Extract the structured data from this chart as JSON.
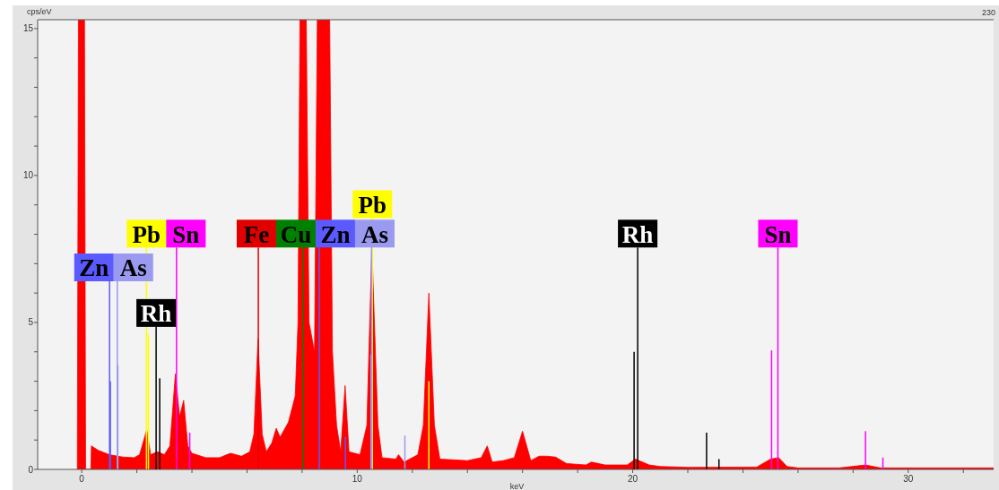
{
  "chart_data": {
    "type": "area",
    "xlabel": "keV",
    "ylabel": "cps/eV",
    "annotations": [
      "230"
    ],
    "xlim": [
      -1.6,
      33.1
    ],
    "ylim": [
      0,
      15.3
    ],
    "xticks": [
      0,
      {
        "value": 2,
        "label": null
      },
      {
        "value": 4,
        "label": null
      },
      {
        "value": 6,
        "label": null
      },
      {
        "value": 8,
        "label": null
      },
      10,
      {
        "value": 12,
        "label": null
      },
      {
        "value": 14,
        "label": null
      },
      {
        "value": 16,
        "label": null
      },
      {
        "value": 18,
        "label": null
      },
      20,
      {
        "value": 22,
        "label": null
      },
      {
        "value": 24,
        "label": null
      },
      {
        "value": 26,
        "label": null
      },
      {
        "value": 28,
        "label": null
      },
      30,
      {
        "value": 32,
        "label": null
      }
    ],
    "yticks": [
      0,
      {
        "value": 1,
        "label": null
      },
      {
        "value": 2,
        "label": null
      },
      {
        "value": 3,
        "label": null
      },
      {
        "value": 4,
        "label": null
      },
      5,
      {
        "value": 6,
        "label": null
      },
      {
        "value": 7,
        "label": null
      },
      {
        "value": 8,
        "label": null
      },
      {
        "value": 9,
        "label": null
      },
      10,
      {
        "value": 11,
        "label": null
      },
      {
        "value": 12,
        "label": null
      },
      {
        "value": 13,
        "label": null
      },
      {
        "value": 14,
        "label": null
      },
      15
    ],
    "series": [
      {
        "color": "#ff0000",
        "x": [
          -0.16,
          -0.12,
          0.1,
          0.14,
          0.33,
          0.35,
          0.6,
          1.0,
          1.5,
          1.9,
          2.1,
          2.36,
          2.5,
          2.75,
          3.0,
          3.2,
          3.4,
          3.55,
          3.7,
          3.85,
          4.0,
          4.5,
          5.0,
          5.4,
          5.8,
          6.1,
          6.25,
          6.4,
          6.55,
          6.7,
          6.9,
          7.06,
          7.2,
          7.5,
          7.75,
          7.85,
          7.92,
          8.15,
          8.25,
          8.45,
          8.55,
          9.0,
          9.1,
          9.25,
          9.4,
          9.56,
          9.7,
          10.1,
          10.35,
          10.53,
          10.75,
          10.9,
          11.4,
          11.5,
          11.7,
          12.2,
          12.4,
          12.6,
          12.8,
          13.0,
          14.0,
          14.5,
          14.72,
          14.9,
          15.3,
          15.7,
          16.0,
          16.3,
          16.6,
          16.9,
          17.2,
          17.6,
          18.3,
          18.5,
          19.0,
          19.8,
          20.1,
          20.6,
          21.0,
          22.0,
          24.5,
          25.0,
          25.3,
          25.6,
          26.0,
          27.5,
          28.45,
          29.0,
          33.1
        ],
        "values": [
          0,
          15.3,
          15.3,
          0,
          0,
          0.8,
          0.65,
          0.5,
          0.42,
          0.4,
          0.5,
          1.35,
          0.5,
          0.6,
          0.5,
          0.8,
          3.25,
          1.8,
          2.35,
          0.8,
          0.55,
          0.4,
          0.4,
          0.55,
          0.45,
          0.6,
          1.2,
          4.45,
          1.2,
          0.6,
          0.9,
          1.4,
          1.1,
          1.6,
          2.5,
          5.0,
          15.3,
          15.3,
          5.0,
          4.0,
          15.3,
          15.3,
          4.0,
          1.5,
          0.6,
          2.85,
          0.6,
          0.5,
          1.5,
          7.6,
          1.5,
          0.4,
          0.35,
          0.5,
          0.25,
          0.5,
          1.5,
          6.0,
          1.5,
          0.35,
          0.3,
          0.4,
          0.8,
          0.25,
          0.3,
          0.4,
          1.3,
          0.3,
          0.45,
          0.45,
          0.42,
          0.2,
          0.15,
          0.25,
          0.15,
          0.15,
          0.35,
          0.15,
          0.1,
          0.07,
          0.08,
          0.35,
          0.4,
          0.1,
          0.05,
          0.05,
          0.15,
          0.05,
          0.05
        ]
      },
      {
        "type": "bar",
        "color": "#5a5aff",
        "x": [
          1.01,
          1.04,
          9.57
        ],
        "values": [
          6.4,
          3.0,
          1.1
        ],
        "value_labels": [
          "Zn",
          null,
          null
        ]
      },
      {
        "type": "bar",
        "color": "#9a9af0",
        "x": [
          1.29,
          1.31,
          10.5,
          11.73
        ],
        "values": [
          6.4,
          3.55,
          3.9,
          1.15
        ],
        "value_labels": [
          "As",
          null,
          null,
          null
        ]
      },
      {
        "type": "bar",
        "color": "#ffff00",
        "x": [
          2.35,
          2.42,
          10.55,
          12.6
        ],
        "values": [
          7.55,
          4.6,
          8.55,
          3.0
        ],
        "value_labels": [
          "Pb",
          null,
          "Pb",
          null
        ]
      },
      {
        "type": "bar",
        "color": "#000000",
        "x": [
          2.7,
          2.83,
          20.05,
          20.18,
          22.68,
          23.13
        ],
        "values": [
          4.85,
          3.1,
          4.0,
          7.55,
          1.25,
          0.35
        ],
        "value_labels": [
          "Rh",
          null,
          null,
          "Rh",
          null,
          null
        ]
      },
      {
        "type": "bar",
        "color": "#ff00ff",
        "x": [
          3.44,
          3.92,
          25.04,
          25.27,
          28.45,
          29.08
        ],
        "values": [
          7.55,
          1.25,
          4.05,
          7.55,
          1.3,
          0.4
        ],
        "value_labels": [
          "Sn",
          null,
          null,
          "Sn",
          null,
          null
        ]
      },
      {
        "type": "bar",
        "color": "#e00000",
        "x": [
          6.41
        ],
        "values": [
          7.55
        ],
        "value_labels": [
          "Fe"
        ]
      },
      {
        "type": "bar",
        "color": "#008000",
        "x": [
          8.04
        ],
        "values": [
          7.55
        ],
        "value_labels": [
          "Cu"
        ]
      },
      {
        "type": "bar",
        "color": "#5a5aff",
        "x": [
          8.62
        ],
        "values": [
          7.55
        ],
        "value_labels": [
          "Zn"
        ]
      },
      {
        "type": "bar",
        "color": "#9a9af0",
        "x": [
          10.52
        ],
        "values": [
          7.55
        ],
        "value_labels": [
          "As"
        ]
      }
    ]
  }
}
